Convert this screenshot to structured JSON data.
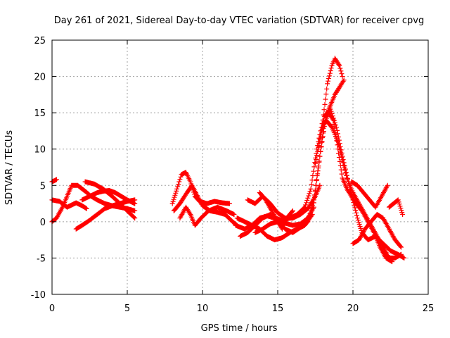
{
  "chart_data": {
    "type": "scatter",
    "title": "Day 261 of 2021, Sidereal Day-to-day VTEC variation (SDTVAR) for receiver cpvg",
    "xlabel": "GPS time / hours",
    "ylabel": "SDTVAR / TECUs",
    "xlim": [
      0,
      25
    ],
    "ylim": [
      -10,
      25
    ],
    "xticks": [
      0,
      5,
      10,
      15,
      20,
      25
    ],
    "yticks": [
      -10,
      -5,
      0,
      5,
      10,
      15,
      20,
      25
    ],
    "grid": true,
    "legend": "none",
    "marker": "+",
    "color": "#ff0000",
    "series": [
      {
        "name": "s1",
        "x": [
          0.0,
          0.5,
          1.0,
          1.3,
          1.6,
          2.0,
          2.3
        ],
        "y": [
          3.0,
          2.8,
          2.0,
          2.3,
          2.6,
          2.2,
          1.8
        ]
      },
      {
        "name": "s2",
        "x": [
          0.0,
          0.3,
          0.7,
          1.0,
          1.3,
          1.7,
          2.2,
          2.6,
          3.0,
          3.5,
          4.0,
          4.5,
          5.0,
          5.5
        ],
        "y": [
          0.0,
          0.5,
          2.0,
          3.5,
          5.0,
          5.0,
          4.2,
          3.5,
          3.0,
          2.5,
          2.2,
          2.0,
          1.8,
          1.5
        ]
      },
      {
        "name": "s3",
        "x": [
          0.0,
          0.3
        ],
        "y": [
          5.5,
          5.8
        ]
      },
      {
        "name": "s4",
        "x": [
          1.6,
          2.0,
          2.5,
          3.0,
          3.5,
          4.0,
          4.5,
          5.0,
          5.5
        ],
        "y": [
          -1.0,
          -0.5,
          0.2,
          1.0,
          1.8,
          2.2,
          2.5,
          2.8,
          3.0
        ]
      },
      {
        "name": "s5",
        "x": [
          2.2,
          2.8,
          3.4,
          4.0,
          4.5,
          5.0,
          5.5
        ],
        "y": [
          5.5,
          5.2,
          4.5,
          3.5,
          2.5,
          1.5,
          0.5
        ]
      },
      {
        "name": "s6",
        "x": [
          2.0,
          2.5,
          3.0,
          3.4,
          3.8,
          4.2,
          4.6,
          5.0,
          5.5
        ],
        "y": [
          3.0,
          3.5,
          4.0,
          4.2,
          4.3,
          4.0,
          3.5,
          3.0,
          2.5
        ]
      },
      {
        "name": "s7",
        "x": [
          8.0,
          8.3,
          8.6,
          8.9,
          9.2,
          9.5,
          9.8,
          10.3,
          10.8,
          11.3,
          11.8
        ],
        "y": [
          2.5,
          4.5,
          6.5,
          6.8,
          5.5,
          3.5,
          2.8,
          2.5,
          2.8,
          2.6,
          2.5
        ]
      },
      {
        "name": "s8",
        "x": [
          8.1,
          8.5,
          8.9,
          9.3,
          9.6,
          10.0,
          10.5,
          11.0,
          11.5,
          12.0,
          12.3
        ],
        "y": [
          1.5,
          2.5,
          3.8,
          5.0,
          3.8,
          2.2,
          1.5,
          1.3,
          1.0,
          0.0,
          -0.5
        ]
      },
      {
        "name": "s9",
        "x": [
          8.5,
          8.9,
          9.2,
          9.5,
          9.9,
          10.4,
          11.0,
          11.6,
          12.1
        ],
        "y": [
          0.5,
          2.0,
          1.0,
          -0.5,
          0.5,
          1.5,
          2.0,
          1.5,
          1.0
        ]
      },
      {
        "name": "s10",
        "x": [
          12.2,
          12.8,
          13.3,
          13.8,
          14.3,
          14.8,
          15.3,
          15.8,
          16.3,
          16.8,
          17.2,
          17.6,
          18.0,
          18.3,
          18.6,
          18.8,
          19.1,
          19.3
        ],
        "y": [
          -0.5,
          -1.0,
          -0.5,
          0.5,
          0.8,
          0.5,
          0.2,
          0.5,
          1.0,
          2.0,
          4.5,
          10.0,
          14.0,
          19.0,
          21.5,
          22.5,
          21.5,
          20.0
        ]
      },
      {
        "name": "s11",
        "x": [
          12.3,
          12.8,
          13.3,
          13.8,
          14.3,
          14.8,
          15.3,
          15.8,
          16.3,
          16.8,
          17.3,
          17.8,
          18.2,
          18.5,
          18.8,
          19.1,
          19.4
        ],
        "y": [
          0.5,
          0.0,
          -0.5,
          -1.0,
          -2.0,
          -2.5,
          -2.2,
          -1.5,
          -1.0,
          -0.5,
          1.0,
          9.0,
          14.5,
          16.0,
          17.5,
          18.5,
          19.5
        ]
      },
      {
        "name": "s12",
        "x": [
          12.5,
          13.0,
          13.5,
          14.0,
          14.5,
          15.0,
          15.5,
          16.0,
          16.5,
          17.0,
          17.4,
          17.8,
          18.1,
          18.4,
          18.7,
          19.0,
          19.3,
          19.6,
          19.9,
          20.2,
          20.6,
          21.0,
          21.4,
          21.8,
          22.2,
          22.6
        ],
        "y": [
          -2.0,
          -1.5,
          -0.5,
          0.5,
          1.0,
          0.0,
          -1.0,
          -1.5,
          -0.8,
          0.0,
          3.0,
          9.0,
          13.5,
          15.0,
          14.0,
          10.0,
          6.0,
          4.5,
          3.5,
          2.5,
          1.5,
          0.0,
          -1.5,
          -3.5,
          -5.0,
          -5.5
        ]
      },
      {
        "name": "s13",
        "x": [
          13.0,
          13.5,
          14.0,
          14.5,
          15.0,
          15.5,
          16.0,
          16.5,
          17.0,
          17.5,
          17.8
        ],
        "y": [
          3.0,
          2.5,
          3.5,
          2.5,
          1.2,
          0.5,
          0.5,
          1.0,
          1.8,
          3.5,
          5.0
        ]
      },
      {
        "name": "s14",
        "x": [
          13.5,
          14.0,
          14.5,
          15.0,
          15.5,
          16.0,
          16.5,
          17.0,
          17.4
        ],
        "y": [
          -1.5,
          -1.0,
          -0.3,
          0.0,
          -0.2,
          -0.5,
          -0.3,
          0.5,
          2.0
        ]
      },
      {
        "name": "s15",
        "x": [
          13.8,
          14.2,
          14.6,
          15.0,
          15.3,
          15.6,
          16.0
        ],
        "y": [
          4.0,
          3.0,
          1.5,
          0.0,
          -1.0,
          0.5,
          1.5
        ]
      },
      {
        "name": "s16",
        "x": [
          17.5,
          17.9,
          18.2,
          18.6,
          19.0,
          19.3,
          19.6,
          20.0,
          20.4,
          20.8,
          21.2,
          21.6,
          22.0,
          22.4,
          22.8,
          23.2
        ],
        "y": [
          8.0,
          12.5,
          14.0,
          13.0,
          11.0,
          8.5,
          6.0,
          4.0,
          2.5,
          1.0,
          -0.5,
          -2.0,
          -3.5,
          -5.0,
          -5.0,
          -4.5
        ]
      },
      {
        "name": "s17",
        "x": [
          17.7,
          18.1,
          18.5,
          18.9,
          19.3,
          19.7,
          20.0,
          20.3,
          20.6,
          21.0,
          21.5,
          22.0,
          22.5,
          23.0,
          23.4
        ],
        "y": [
          10.0,
          14.5,
          15.5,
          13.0,
          9.0,
          5.5,
          3.0,
          0.5,
          -1.5,
          -2.5,
          -2.0,
          -3.0,
          -4.0,
          -4.5,
          -5.0
        ]
      },
      {
        "name": "s18",
        "x": [
          19.9,
          20.3,
          20.7,
          21.1,
          21.5,
          21.9,
          22.3
        ],
        "y": [
          5.5,
          5.0,
          4.0,
          3.0,
          2.0,
          3.5,
          5.0
        ]
      },
      {
        "name": "s19",
        "x": [
          20.0,
          20.4,
          20.8,
          21.2,
          21.6,
          22.0,
          22.4,
          22.8,
          23.2
        ],
        "y": [
          -3.0,
          -2.5,
          -1.0,
          0.0,
          1.0,
          0.5,
          -1.0,
          -2.5,
          -3.5
        ]
      },
      {
        "name": "s20",
        "x": [
          22.4,
          22.7,
          23.0,
          23.3
        ],
        "y": [
          2.0,
          2.5,
          3.0,
          1.0
        ]
      }
    ]
  }
}
